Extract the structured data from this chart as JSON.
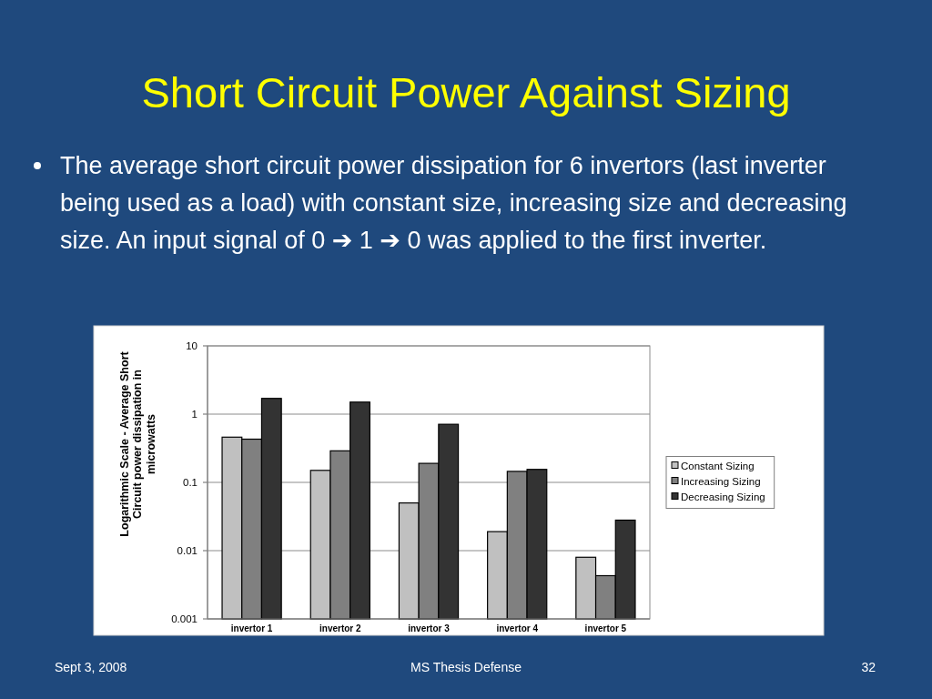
{
  "chart_data": {
    "type": "bar",
    "title": "Short Circuit Power Against Sizing",
    "subtitle": "The average short circuit power dissipation for 6 invertors (last inverter being used as a load) with constant size, increasing size and decreasing size. An input signal of 0 ➔ 1 ➔ 0 was applied to the first inverter.",
    "ylabel": "Logarithmic Scale - Average Short Circuit power dissipation in microwatts",
    "categories": [
      "invertor 1",
      "invertor 2",
      "invertor 3",
      "invertor 4",
      "invertor 5"
    ],
    "series": [
      {
        "name": "Constant Sizing",
        "color": "#c0c0c0",
        "values": [
          0.46,
          0.15,
          0.05,
          0.019,
          0.008
        ]
      },
      {
        "name": "Increasing Sizing",
        "color": "#808080",
        "values": [
          0.43,
          0.29,
          0.19,
          0.145,
          0.0043
        ]
      },
      {
        "name": "Decreasing Sizing",
        "color": "#333333",
        "values": [
          1.7,
          1.5,
          0.71,
          0.155,
          0.028
        ]
      }
    ],
    "ylim": [
      0.001,
      10
    ],
    "yticks": [
      0.001,
      0.01,
      0.1,
      1,
      10
    ],
    "log": "y",
    "grid": "y",
    "legend": "right",
    "annotations": [
      "Sept 3, 2008",
      "MS Thesis Defense",
      "32"
    ]
  }
}
